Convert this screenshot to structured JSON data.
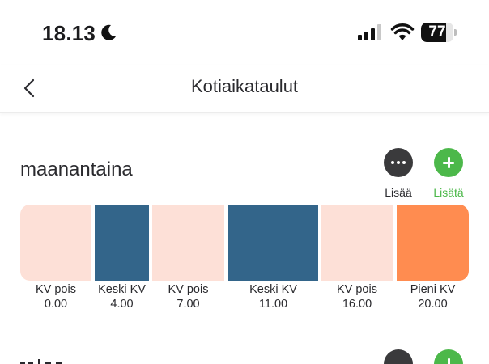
{
  "status_bar": {
    "time": "18.13",
    "battery_level": "77",
    "battery_fraction": 0.77,
    "icons": [
      "moon-icon",
      "cellular-signal-icon",
      "wifi-icon",
      "battery-icon"
    ]
  },
  "nav": {
    "title": "Kotiaikataulut",
    "back_icon": "chevron-left-icon"
  },
  "day": {
    "title": "maanantaina",
    "more_label": "Lisää",
    "add_label": "Lisätä",
    "segments": [
      {
        "label": "KV pois",
        "time": "0.00",
        "color": "#fde0d7"
      },
      {
        "label": "Keski KV",
        "time": "4.00",
        "color": "#33658a"
      },
      {
        "label": "KV pois",
        "time": "7.00",
        "color": "#fde0d7"
      },
      {
        "label": "Keski KV",
        "time": "11.00",
        "color": "#33658a"
      },
      {
        "label": "KV pois",
        "time": "16.00",
        "color": "#fde0d7"
      },
      {
        "label": "Pieni KV",
        "time": "20.00",
        "color": "#ff8c50"
      }
    ]
  },
  "colors": {
    "accent_green": "#4cb84a",
    "dark_button": "#3a3a3c"
  }
}
